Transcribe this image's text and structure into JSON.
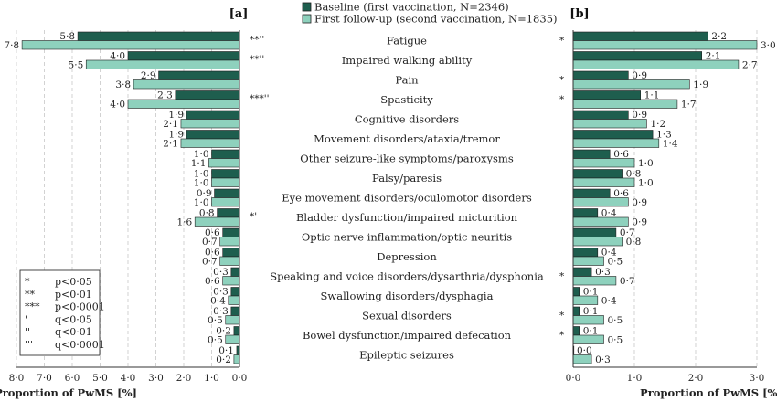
{
  "chart_data": {
    "type": "bar",
    "legend": {
      "position": "top-center",
      "baseline_label": "Baseline (first vaccination, N=2346)",
      "followup_label": "First follow-up (second vaccination, N=1835)"
    },
    "colors": {
      "baseline": "#1e5e4e",
      "followup": "#8ed1bd",
      "edge": "#1f1f1f",
      "grid": "#c8c8c8"
    },
    "categories": [
      "Fatigue",
      "Impaired walking ability",
      "Pain",
      "Spasticity",
      "Cognitive disorders",
      "Movement disorders/ataxia/tremor",
      "Other seizure-like symptoms/paroxysms",
      "Palsy/paresis",
      "Eye movement disorders/oculomotor disorders",
      "Bladder dysfunction/impaired micturition",
      "Optic nerve inflammation/optic neuritis",
      "Depression",
      "Speaking and voice disorders/dysarthria/dysphonia",
      "Swallowing disorders/dysphagia",
      "Sexual disorders",
      "Bowel dysfunction/impaired defecation",
      "Epileptic seizures"
    ],
    "panel_a": {
      "title": "[a]",
      "xlabel": "Proportion of PwMS [%]",
      "xlim": [
        8,
        0
      ],
      "ticks": [
        "8·0",
        "7·0",
        "6·0",
        "5·0",
        "4·0",
        "3·0",
        "2·0",
        "1·0",
        "0·0"
      ],
      "grid": true,
      "baseline": [
        5.8,
        4.0,
        2.9,
        2.3,
        1.9,
        1.9,
        1.0,
        1.0,
        0.9,
        0.8,
        0.6,
        0.6,
        0.3,
        0.3,
        0.3,
        0.2,
        0.1
      ],
      "followup": [
        7.8,
        5.5,
        3.8,
        4.0,
        2.1,
        2.1,
        1.1,
        1.0,
        1.0,
        1.6,
        0.7,
        0.7,
        0.6,
        0.4,
        0.5,
        0.5,
        0.2
      ],
      "baseline_labels": [
        "5·8",
        "4·0",
        "2·9",
        "2·3",
        "1·9",
        "1·9",
        "1·0",
        "1·0",
        "0·9",
        "0·8",
        "0·6",
        "0·6",
        "0·3",
        "0·3",
        "0·3",
        "0·2",
        "0·1"
      ],
      "followup_labels": [
        "7·8",
        "5·5",
        "3·8",
        "4·0",
        "2·1",
        "2·1",
        "1·1",
        "1·0",
        "1·0",
        "1·6",
        "0·7",
        "0·7",
        "0·6",
        "0·4",
        "0·5",
        "0·5",
        "0·2"
      ],
      "significance": [
        "**''",
        "**''",
        "",
        "***''",
        "",
        "",
        "",
        "",
        "",
        "*'",
        "",
        "",
        "",
        "",
        "",
        "",
        ""
      ]
    },
    "panel_b": {
      "title": "[b]",
      "xlabel": "Proportion of PwMS [%]",
      "xlim": [
        0,
        3
      ],
      "ticks": [
        "0·0",
        "1·0",
        "2·0",
        "3·0"
      ],
      "grid": true,
      "baseline": [
        2.2,
        2.1,
        0.9,
        1.1,
        0.9,
        1.3,
        0.6,
        0.8,
        0.6,
        0.4,
        0.7,
        0.4,
        0.3,
        0.1,
        0.1,
        0.1,
        0.0
      ],
      "followup": [
        3.0,
        2.7,
        1.9,
        1.7,
        1.2,
        1.4,
        1.0,
        1.0,
        0.9,
        0.9,
        0.8,
        0.5,
        0.7,
        0.4,
        0.5,
        0.5,
        0.3
      ],
      "baseline_labels": [
        "2·2",
        "2·1",
        "0·9",
        "1·1",
        "0·9",
        "1·3",
        "0·6",
        "0·8",
        "0·6",
        "0·4",
        "0·7",
        "0·4",
        "0·3",
        "0·1",
        "0·1",
        "0·1",
        "0·0"
      ],
      "followup_labels": [
        "3·0",
        "2·7",
        "1·9",
        "1·7",
        "1·2",
        "1·4",
        "1·0",
        "1·0",
        "0·9",
        "0·9",
        "0·8",
        "0·5",
        "0·7",
        "0·4",
        "0·5",
        "0·5",
        "0·3"
      ],
      "significance": [
        "*",
        "",
        "*",
        "*",
        "",
        "",
        "",
        "",
        "",
        "",
        "",
        "",
        "*",
        "",
        "*",
        "*",
        ""
      ]
    },
    "significance_key": [
      {
        "symbol": "*",
        "text": "p<0·05"
      },
      {
        "symbol": "**",
        "text": "p<0·01"
      },
      {
        "symbol": "***",
        "text": "p<0·0001"
      },
      {
        "symbol": "'",
        "text": "q<0·05"
      },
      {
        "symbol": "''",
        "text": "q<0·01"
      },
      {
        "symbol": "'''",
        "text": "q<0·0001"
      }
    ]
  }
}
